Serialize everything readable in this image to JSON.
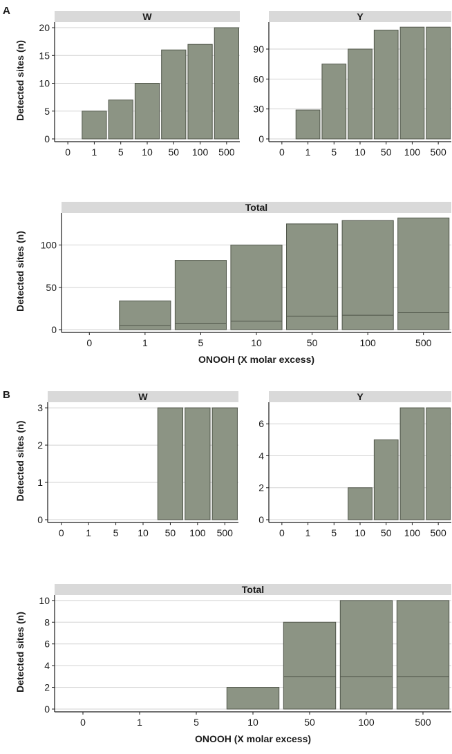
{
  "figure": {
    "panel_letters": [
      "A",
      "B"
    ]
  },
  "colors": {
    "bar_fill": "#8c9484",
    "bar_stroke": "#4f5549",
    "strip_fill": "#d9d9d9",
    "grid": "#d2d2d2",
    "axis": "#1a1a1a"
  },
  "chart_data": [
    {
      "panel": "A",
      "facet": "W",
      "type": "bar",
      "categories": [
        "0",
        "1",
        "5",
        "10",
        "50",
        "100",
        "500"
      ],
      "values": [
        0,
        5,
        7,
        10,
        16,
        17,
        20
      ],
      "ylabel": "Detected sites (n)",
      "xlabel": "",
      "ylim": [
        0,
        21
      ],
      "yticks": [
        0,
        5,
        10,
        15,
        20
      ],
      "grid": true
    },
    {
      "panel": "A",
      "facet": "Y",
      "type": "bar",
      "categories": [
        "0",
        "1",
        "5",
        "10",
        "50",
        "100",
        "500"
      ],
      "values": [
        0,
        29,
        75,
        90,
        109,
        112,
        112
      ],
      "ylabel": "",
      "xlabel": "",
      "ylim": [
        0,
        117
      ],
      "yticks": [
        0,
        30,
        60,
        90
      ],
      "grid": true
    },
    {
      "panel": "A",
      "facet": "Total",
      "type": "bar",
      "categories": [
        "0",
        "1",
        "5",
        "10",
        "50",
        "100",
        "500"
      ],
      "stacked": true,
      "series": [
        {
          "values": [
            0,
            5,
            7,
            10,
            16,
            17,
            20
          ]
        },
        {
          "values": [
            0,
            29,
            75,
            90,
            109,
            112,
            112
          ]
        }
      ],
      "totals": [
        0,
        34,
        82,
        100,
        125,
        129,
        132
      ],
      "ylabel": "Detected sites (n)",
      "xlabel": "ONOOH (X molar excess)",
      "ylim": [
        0,
        138
      ],
      "yticks": [
        0,
        50,
        100
      ],
      "grid": true
    },
    {
      "panel": "B",
      "facet": "W",
      "type": "bar",
      "categories": [
        "0",
        "1",
        "5",
        "10",
        "50",
        "100",
        "500"
      ],
      "values": [
        0,
        0,
        0,
        0,
        3,
        3,
        3
      ],
      "ylabel": "Detected sites (n)",
      "xlabel": "",
      "ylim": [
        0,
        3.15
      ],
      "yticks": [
        0,
        1,
        2,
        3
      ],
      "grid": true
    },
    {
      "panel": "B",
      "facet": "Y",
      "type": "bar",
      "categories": [
        "0",
        "1",
        "5",
        "10",
        "50",
        "100",
        "500"
      ],
      "values": [
        0,
        0,
        0,
        2,
        5,
        7,
        7
      ],
      "ylabel": "",
      "xlabel": "",
      "ylim": [
        0,
        7.35
      ],
      "yticks": [
        0,
        2,
        4,
        6
      ],
      "grid": true
    },
    {
      "panel": "B",
      "facet": "Total",
      "type": "bar",
      "categories": [
        "0",
        "1",
        "5",
        "10",
        "50",
        "100",
        "500"
      ],
      "stacked": true,
      "series": [
        {
          "values": [
            0,
            0,
            0,
            0,
            3,
            3,
            3
          ]
        },
        {
          "values": [
            0,
            0,
            0,
            2,
            5,
            7,
            7
          ]
        }
      ],
      "totals": [
        0,
        0,
        0,
        2,
        8,
        10,
        10
      ],
      "ylabel": "Detected sites (n)",
      "xlabel": "ONOOH (X molar excess)",
      "ylim": [
        0,
        10.5
      ],
      "yticks": [
        0,
        2,
        4,
        6,
        8,
        10
      ],
      "grid": true
    }
  ]
}
